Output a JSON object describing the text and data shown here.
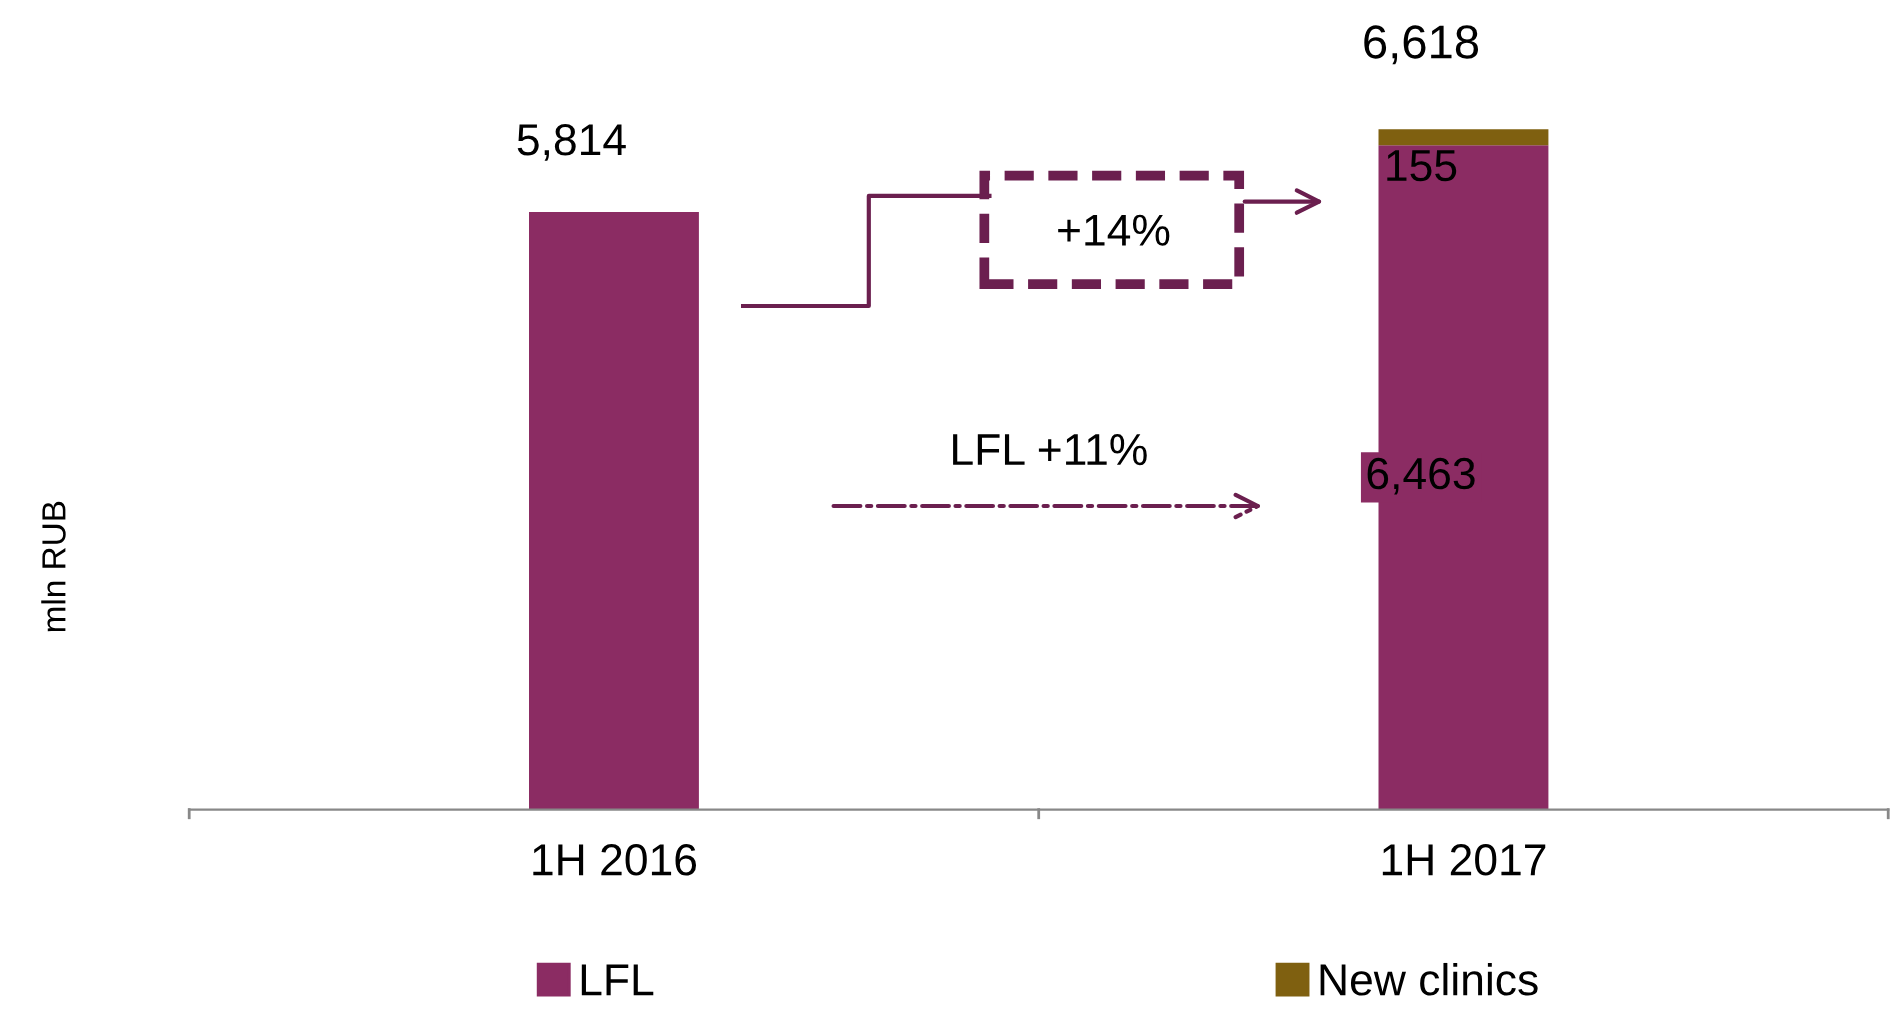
{
  "chart_data": {
    "type": "bar",
    "stacked": true,
    "ylabel": "mln RUB",
    "categories": [
      "1H 2016",
      "1H 2017"
    ],
    "series": [
      {
        "name": "LFL",
        "color": "#8b2c63",
        "values": [
          5814,
          6463
        ],
        "value_labels": [
          "5,814",
          "6,463"
        ]
      },
      {
        "name": "New clinics",
        "color": "#7f6010",
        "values": [
          null,
          155
        ],
        "value_labels": [
          null,
          "155"
        ]
      }
    ],
    "totals": [
      null,
      "6,618"
    ],
    "annotations": [
      "+14%",
      "LFL +11%"
    ],
    "legend": "bottom",
    "grid": false
  }
}
